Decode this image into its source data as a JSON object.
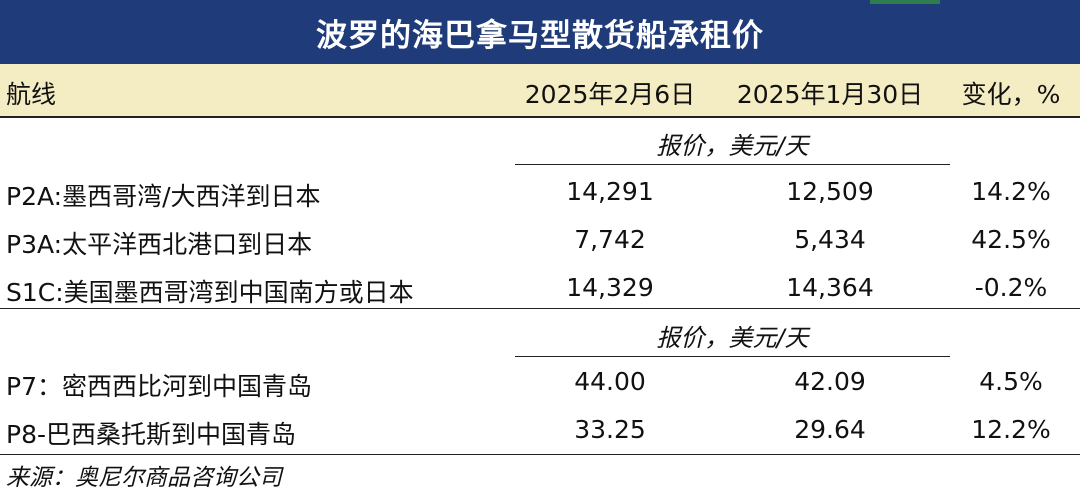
{
  "title": "波罗的海巴拿马型散货船承租价",
  "header": {
    "route": "航线",
    "date1": "2025年2月6日",
    "date2": "2025年1月30日",
    "change": "变化，%"
  },
  "sections": [
    {
      "subheader": "报价，美元/天",
      "rows": [
        {
          "route": "P2A:墨西哥湾/大西洋到日本",
          "v1": "14,291",
          "v2": "12,509",
          "change": "14.2%"
        },
        {
          "route": "P3A:太平洋西北港口到日本",
          "v1": "7,742",
          "v2": "5,434",
          "change": "42.5%"
        },
        {
          "route": "S1C:美国墨西哥湾到中国南方或日本",
          "v1": "14,329",
          "v2": "14,364",
          "change": "-0.2%"
        }
      ]
    },
    {
      "subheader": "报价，美元/天",
      "rows": [
        {
          "route": "P7：密西西比河到中国青岛",
          "v1": "44.00",
          "v2": "42.09",
          "change": "4.5%"
        },
        {
          "route": "P8-巴西桑托斯到中国青岛",
          "v1": "33.25",
          "v2": "29.64",
          "change": "12.2%"
        }
      ]
    }
  ],
  "source": "来源：奥尼尔商品咨询公司",
  "colors": {
    "title_bg": "#1f3b7a",
    "header_bg": "#f4ecc2"
  }
}
